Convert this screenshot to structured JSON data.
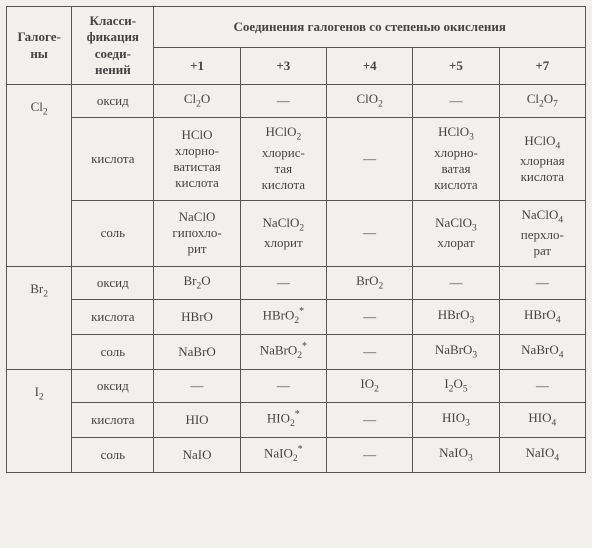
{
  "header": {
    "halogen": "Галоге-\nны",
    "class": "Класси-\nфикация\nсоеди-\nнений",
    "spanner": "Соединения галогенов со степенью окисления",
    "ox_states": [
      "+1",
      "+3",
      "+4",
      "+5",
      "+7"
    ]
  },
  "groups": [
    {
      "halogen": [
        "Cl",
        "2"
      ],
      "rows": [
        {
          "class": "оксид",
          "cells": [
            [
              "Cl",
              "2",
              "O"
            ],
            "—",
            [
              "ClO",
              "2"
            ],
            "—",
            [
              "Cl",
              "2",
              "O",
              "7"
            ]
          ]
        },
        {
          "class": "кислота",
          "cells": [
            {
              "f": [
                "HClO"
              ],
              "t": "хлорно-\nватистая\nкислота"
            },
            {
              "f": [
                "HClO",
                "2"
              ],
              "t": "хлорис-\nтая\nкислота"
            },
            "—",
            {
              "f": [
                "HClO",
                "3"
              ],
              "t": "хлорно-\nватая\nкислота"
            },
            {
              "f": [
                "HClO",
                "4"
              ],
              "t": "хлорная\nкислота"
            }
          ]
        },
        {
          "class": "соль",
          "cells": [
            {
              "f": [
                "NaClO"
              ],
              "t": "гипохло-\nрит"
            },
            {
              "f": [
                "NaClO",
                "2"
              ],
              "t": "хлорит"
            },
            "—",
            {
              "f": [
                "NaClO",
                "3"
              ],
              "t": "хлорат"
            },
            {
              "f": [
                "NaClO",
                "4"
              ],
              "t": "перхло-\nрат"
            }
          ]
        }
      ]
    },
    {
      "halogen": [
        "Br",
        "2"
      ],
      "rows": [
        {
          "class": "оксид",
          "cells": [
            [
              "Br",
              "2",
              "O"
            ],
            "—",
            [
              "BrO",
              "2"
            ],
            "—",
            "—"
          ]
        },
        {
          "class": "кислота",
          "cells": [
            [
              "HBrO"
            ],
            {
              "f": [
                "HBrO",
                "2"
              ],
              "star": true
            },
            "—",
            [
              "HBrO",
              "3"
            ],
            [
              "HBrO",
              "4"
            ]
          ]
        },
        {
          "class": "соль",
          "cells": [
            [
              "NaBrO"
            ],
            {
              "f": [
                "NaBrO",
                "2"
              ],
              "star": true
            },
            "—",
            [
              "NaBrO",
              "3"
            ],
            [
              "NaBrO",
              "4"
            ]
          ]
        }
      ]
    },
    {
      "halogen": [
        "I",
        "2"
      ],
      "rows": [
        {
          "class": "оксид",
          "cells": [
            "—",
            "—",
            [
              "IO",
              "2"
            ],
            [
              "I",
              "2",
              "O",
              "5"
            ],
            "—"
          ]
        },
        {
          "class": "кислота",
          "cells": [
            [
              "HIO"
            ],
            {
              "f": [
                "HIO",
                "2"
              ],
              "star": true
            },
            "—",
            [
              "HIO",
              "3"
            ],
            [
              "HIO",
              "4"
            ]
          ]
        },
        {
          "class": "соль",
          "cells": [
            [
              "NaIO"
            ],
            {
              "f": [
                "NaIO",
                "2"
              ],
              "star": true
            },
            "—",
            [
              "NaIO",
              "3"
            ],
            [
              "NaIO",
              "4"
            ]
          ]
        }
      ]
    }
  ]
}
